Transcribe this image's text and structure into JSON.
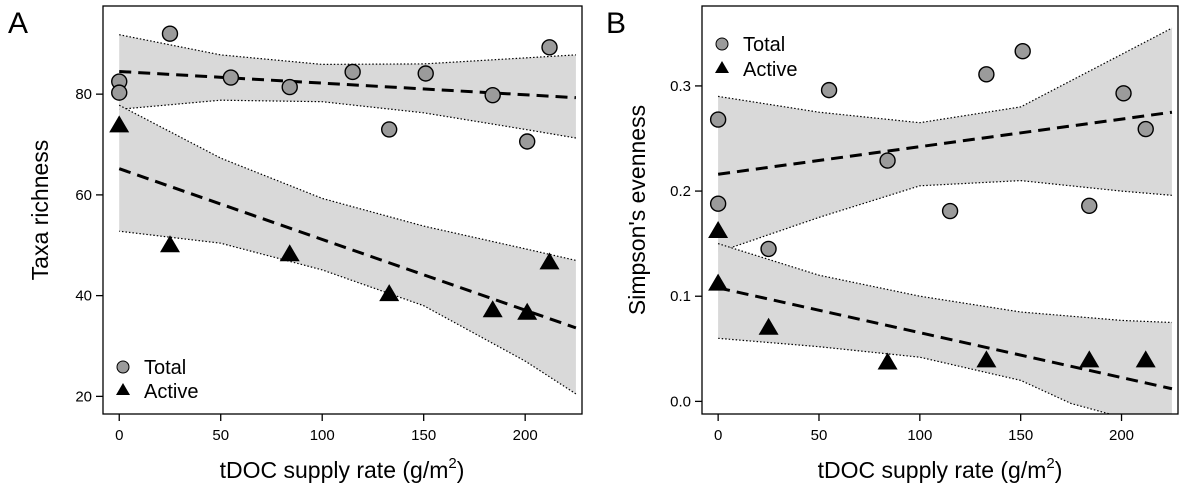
{
  "chart_data": [
    {
      "panel": "A",
      "type": "scatter",
      "title": "",
      "xlabel": "tDOC supply rate (g/m",
      "xlabel_sup": "2",
      "xlabel_end": ")",
      "ylabel": "Taxa richness",
      "xlim": [
        -8,
        228
      ],
      "ylim": [
        16.5,
        97.5
      ],
      "xticks": [
        0,
        50,
        100,
        150,
        200
      ],
      "yticks": [
        20,
        40,
        60,
        80
      ],
      "grid": false,
      "legend_position": "bottom-left",
      "series": [
        {
          "name": "Total",
          "marker": "circle",
          "color": "#9b9b9b",
          "x": [
            0,
            0,
            25,
            55,
            84,
            115,
            133,
            151,
            184,
            201,
            212
          ],
          "y": [
            82.5,
            80.3,
            92.0,
            83.3,
            81.4,
            84.4,
            73.0,
            84.1,
            79.8,
            70.6,
            89.3
          ],
          "fit": {
            "x": [
              0,
              225
            ],
            "y": [
              84.5,
              79.3
            ]
          },
          "ci_upper": {
            "x": [
              0,
              50,
              100,
              150,
              200,
              225
            ],
            "y": [
              91.8,
              87.8,
              85.9,
              86.0,
              87.2,
              87.8
            ]
          },
          "ci_lower": {
            "x": [
              0,
              50,
              100,
              150,
              200,
              225
            ],
            "y": [
              77.0,
              78.8,
              78.5,
              76.3,
              73.0,
              71.3
            ]
          }
        },
        {
          "name": "Active",
          "marker": "triangle",
          "color": "#000000",
          "x": [
            0,
            25,
            84,
            133,
            184,
            201,
            212
          ],
          "y": [
            73.8,
            50.0,
            48.2,
            40.3,
            37.1,
            36.6,
            46.6
          ],
          "fit": {
            "x": [
              0,
              225
            ],
            "y": [
              65.2,
              33.6
            ]
          },
          "ci_upper": {
            "x": [
              0,
              50,
              100,
              150,
              200,
              225
            ],
            "y": [
              77.8,
              67.3,
              59.3,
              53.8,
              49.3,
              47.0
            ]
          },
          "ci_lower": {
            "x": [
              0,
              50,
              100,
              150,
              200,
              225
            ],
            "y": [
              52.8,
              50.4,
              45.1,
              38.0,
              27.0,
              20.5
            ]
          }
        }
      ]
    },
    {
      "panel": "B",
      "type": "scatter",
      "title": "",
      "xlabel": "tDOC supply rate (g/m",
      "xlabel_sup": "2",
      "xlabel_end": ")",
      "ylabel": "Simpson's evenness",
      "xlim": [
        -8,
        228
      ],
      "ylim": [
        -0.012,
        0.376
      ],
      "xticks": [
        0,
        50,
        100,
        150,
        200
      ],
      "yticks": [
        0.0,
        0.1,
        0.2,
        0.3
      ],
      "ytick_labels": [
        "0.0",
        "0.1",
        "0.2",
        "0.3"
      ],
      "grid": false,
      "legend_position": "top-left",
      "series": [
        {
          "name": "Total",
          "marker": "circle",
          "color": "#9b9b9b",
          "x": [
            0,
            0,
            25,
            55,
            84,
            115,
            133,
            151,
            184,
            201,
            212
          ],
          "y": [
            0.268,
            0.188,
            0.145,
            0.296,
            0.229,
            0.181,
            0.311,
            0.333,
            0.186,
            0.293,
            0.259
          ],
          "fit": {
            "x": [
              0,
              225
            ],
            "y": [
              0.216,
              0.275
            ]
          },
          "ci_upper": {
            "x": [
              0,
              50,
              100,
              150,
              200,
              225
            ],
            "y": [
              0.29,
              0.275,
              0.265,
              0.28,
              0.33,
              0.355
            ]
          },
          "ci_lower": {
            "x": [
              0,
              50,
              100,
              150,
              200,
              225
            ],
            "y": [
              0.142,
              0.175,
              0.205,
              0.21,
              0.2,
              0.196
            ]
          }
        },
        {
          "name": "Active",
          "marker": "triangle",
          "color": "#000000",
          "x": [
            0,
            0,
            25,
            84,
            133,
            184,
            212
          ],
          "y": [
            0.162,
            0.112,
            0.07,
            0.037,
            0.039,
            0.039,
            0.039
          ],
          "fit": {
            "x": [
              0,
              225
            ],
            "y": [
              0.108,
              0.012
            ]
          },
          "ci_upper": {
            "x": [
              0,
              50,
              100,
              150,
              200,
              225
            ],
            "y": [
              0.15,
              0.12,
              0.1,
              0.085,
              0.077,
              0.075
            ]
          },
          "ci_lower": {
            "x": [
              0,
              50,
              100,
              150,
              175,
              200,
              225
            ],
            "y": [
              0.06,
              0.052,
              0.042,
              0.02,
              -0.002,
              -0.015,
              -0.04
            ]
          }
        }
      ]
    }
  ]
}
